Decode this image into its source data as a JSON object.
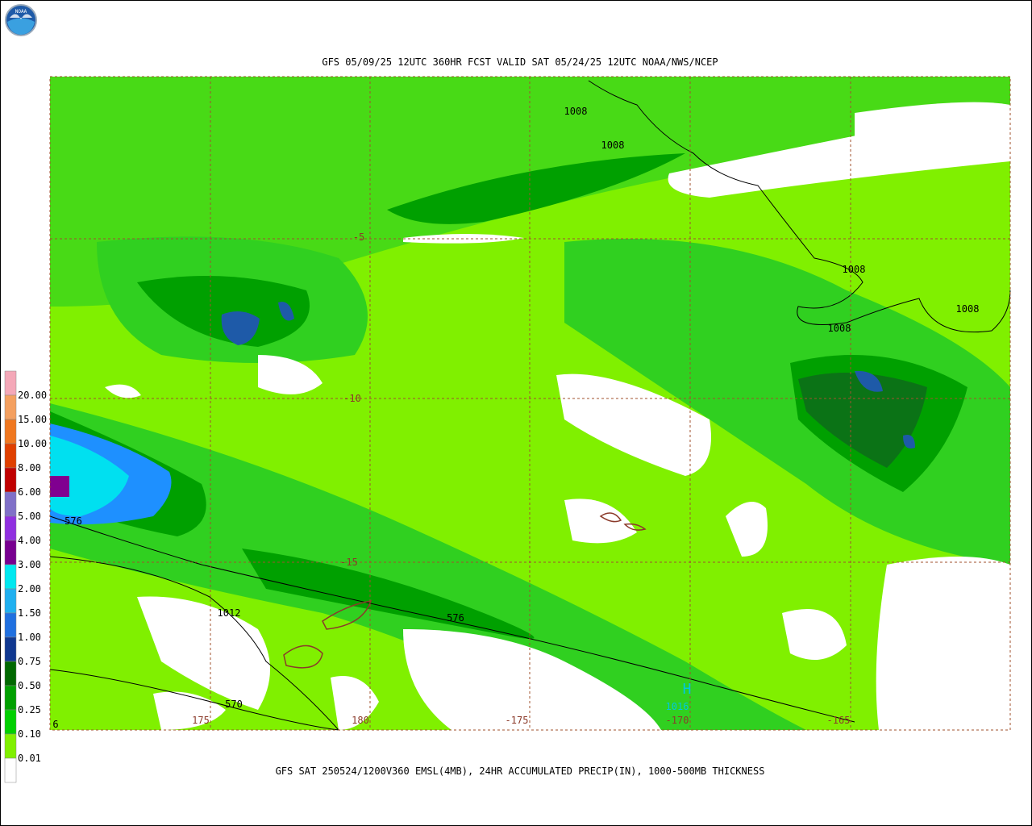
{
  "header": {
    "logo": "NOAA",
    "title": "GFS 05/09/25 12UTC 360HR FCST VALID SAT 05/24/25 12UTC NOAA/NWS/NCEP"
  },
  "footer": {
    "caption": "GFS SAT 250524/1200V360 EMSL(4MB), 24HR ACCUMULATED PRECIP(IN), 1000-500MB THICKNESS"
  },
  "legend": {
    "labels": [
      "20.00",
      "15.00",
      "10.00",
      "8.00",
      "6.00",
      "5.00",
      "4.00",
      "3.00",
      "2.00",
      "1.50",
      "1.00",
      "0.75",
      "0.50",
      "0.25",
      "0.10",
      "0.01"
    ]
  },
  "map": {
    "latitude_labels": [
      "-5",
      "-10",
      "-15"
    ],
    "longitude_labels": [
      "175",
      "180",
      "-175",
      "-170",
      "-165"
    ],
    "contour_labels": [
      "1008",
      "1008",
      "1008",
      "1008",
      "1008",
      "576",
      "576",
      "1012",
      "570",
      "6",
      "H",
      "1016"
    ]
  }
}
